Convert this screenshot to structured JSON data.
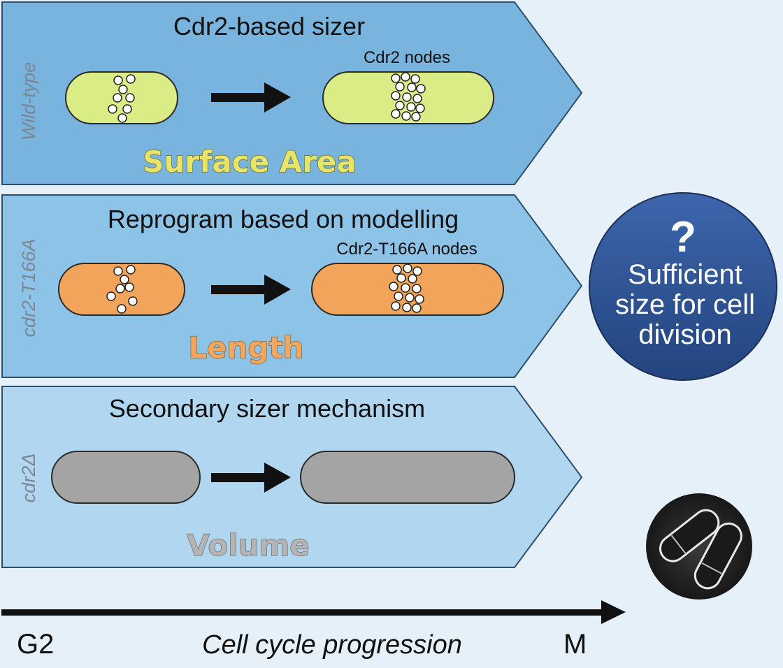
{
  "panels": [
    {
      "side_label": "Wild-type",
      "title": "Cdr2-based sizer",
      "nodes_label": "Cdr2 nodes",
      "measure": "Surface Area",
      "colors": {
        "fill": "#78b4de",
        "cell": "#d9ec86",
        "measure_text": "#e6e46a"
      }
    },
    {
      "side_label": "cdr2-T166A",
      "title": "Reprogram based on modelling",
      "nodes_label": "Cdr2-T166A nodes",
      "measure": "Length",
      "colors": {
        "fill": "#8dc3e6",
        "cell": "#f2a55a",
        "measure_text": "#f0a860"
      }
    },
    {
      "side_label": "cdr2Δ",
      "title": "Secondary sizer mechanism",
      "nodes_label": "",
      "measure": "Volume",
      "colors": {
        "fill": "#b0d6f0",
        "cell": "#a4a4a4",
        "measure_text": "#b4b4b4"
      }
    }
  ],
  "outcome": {
    "question_mark": "?",
    "lines": [
      "Sufficient",
      "size for cell",
      "division"
    ],
    "color": "#2e5496"
  },
  "timeline": {
    "start": "G2",
    "label": "Cell cycle progression",
    "end": "M"
  },
  "icons": {
    "arrow": "right-arrow-icon",
    "node": "node-dot-icon",
    "micrograph": "cell-micrograph-icon"
  }
}
